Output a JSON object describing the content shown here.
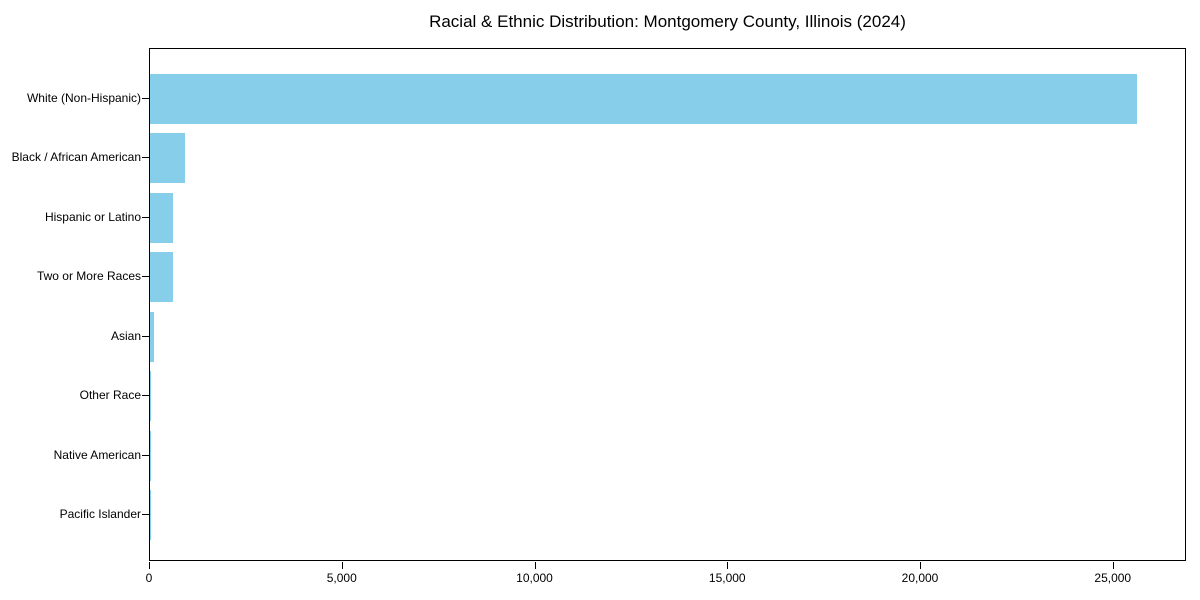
{
  "chart_data": {
    "type": "bar",
    "orientation": "horizontal",
    "title": "Racial & Ethnic Distribution: Montgomery County, Illinois (2024)",
    "xlabel": "",
    "ylabel": "",
    "categories": [
      "White (Non-Hispanic)",
      "Black / African American",
      "Hispanic or Latino",
      "Two or More Races",
      "Asian",
      "Other Race",
      "Native American",
      "Pacific Islander"
    ],
    "values": [
      25615,
      915,
      590,
      605,
      110,
      30,
      22,
      8
    ],
    "xlim": [
      0,
      26900
    ],
    "x_ticks": [
      {
        "value": 0,
        "label": "0"
      },
      {
        "value": 5000,
        "label": "5,000"
      },
      {
        "value": 10000,
        "label": "10,000"
      },
      {
        "value": 15000,
        "label": "15,000"
      },
      {
        "value": 20000,
        "label": "20,000"
      },
      {
        "value": 25000,
        "label": "25,000"
      }
    ],
    "bar_color": "#87CEEB",
    "grid": false,
    "legend": null,
    "background_color": "#ffffff",
    "axis_color": "#000000"
  }
}
